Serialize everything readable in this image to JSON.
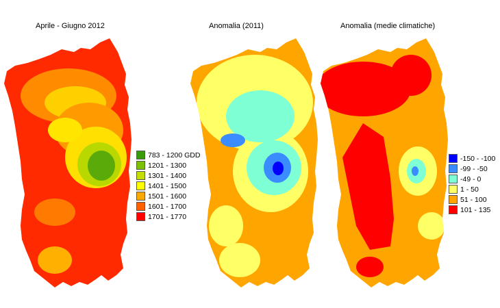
{
  "maps": [
    {
      "title": "Aprile - Giugno 2012",
      "legend": [
        {
          "label": "783 - 1200 GDD",
          "color": "#3a9a0a"
        },
        {
          "label": "1201 - 1300",
          "color": "#7cc000"
        },
        {
          "label": "1301 - 1400",
          "color": "#c3de00"
        },
        {
          "label": "1401 - 1500",
          "color": "#ffff00"
        },
        {
          "label": "1501 - 1600",
          "color": "#ffa800"
        },
        {
          "label": "1601 - 1700",
          "color": "#ff6000"
        },
        {
          "label": "1701 - 1770",
          "color": "#ff0000"
        }
      ]
    },
    {
      "title": "Anomalia (2011)"
    },
    {
      "title": "Anomalia (medie climatiche)",
      "legend": [
        {
          "label": "-150 - -100",
          "color": "#0000ff"
        },
        {
          "label": "-99 - -50",
          "color": "#3a8cff"
        },
        {
          "label": "-49 - 0",
          "color": "#7fffd4"
        },
        {
          "label": "1 - 50",
          "color": "#ffff66"
        },
        {
          "label": "51 - 100",
          "color": "#ffa500"
        },
        {
          "label": "101 - 135",
          "color": "#ff0000"
        }
      ]
    }
  ]
}
